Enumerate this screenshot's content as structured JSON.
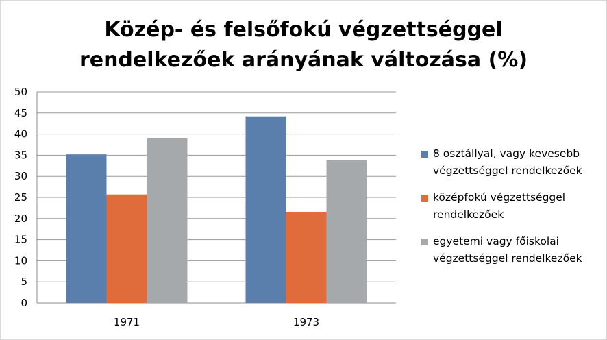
{
  "chart_data": {
    "type": "bar",
    "title_lines": [
      "Közép- és felsőfokú végzettséggel",
      "rendelkezőek arányának változása (%)"
    ],
    "categories": [
      "1971",
      "1973"
    ],
    "series": [
      {
        "name_lines": [
          "8 osztállyal, vagy kevesebb",
          "végzettséggel rendelkezőek"
        ],
        "color": "#5b7fad",
        "values": [
          35.2,
          44.2
        ]
      },
      {
        "name_lines": [
          "középfokú végzettséggel",
          "rendelkezőek"
        ],
        "color": "#e06c3c",
        "values": [
          25.7,
          21.6
        ]
      },
      {
        "name_lines": [
          "egyetemi vagy főiskolai",
          "végzettséggel rendelkezőek"
        ],
        "color": "#a5a9ac",
        "values": [
          39.0,
          33.9
        ]
      }
    ],
    "ylim": [
      0,
      50
    ],
    "y_ticks": [
      "0",
      "5",
      "10",
      "15",
      "20",
      "25",
      "30",
      "35",
      "40",
      "45",
      "50"
    ],
    "grid": true,
    "legend_position": "right"
  }
}
